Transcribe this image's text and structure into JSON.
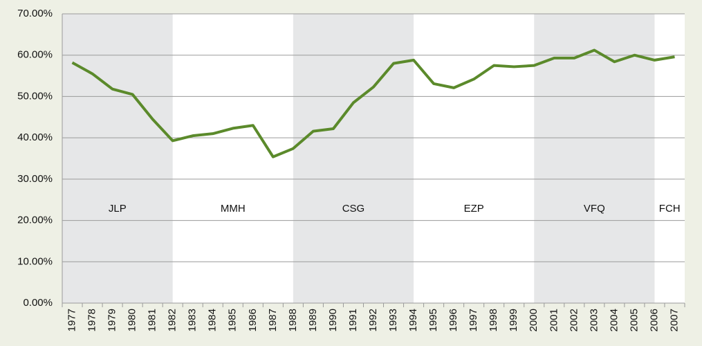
{
  "chart_data": {
    "type": "line",
    "categories": [
      "1977",
      "1978",
      "1979",
      "1980",
      "1981",
      "1982",
      "1983",
      "1984",
      "1985",
      "1986",
      "1987",
      "1988",
      "1989",
      "1990",
      "1991",
      "1992",
      "1993",
      "1994",
      "1995",
      "1996",
      "1997",
      "1998",
      "1999",
      "2000",
      "2001",
      "2002",
      "2003",
      "2004",
      "2005",
      "2006",
      "2007"
    ],
    "values": [
      58.2,
      55.5,
      51.8,
      50.5,
      44.5,
      39.3,
      40.5,
      41.0,
      42.3,
      43.0,
      35.4,
      37.4,
      41.6,
      42.2,
      48.5,
      52.3,
      58.0,
      58.8,
      53.1,
      52.1,
      54.2,
      57.5,
      57.2,
      57.5,
      59.3,
      59.3,
      61.2,
      58.4,
      60.0,
      58.8,
      59.6
    ],
    "color": "#5b8a2b",
    "ylim": [
      0,
      70
    ],
    "yticks": [
      {
        "value": 0,
        "label": "0.00%"
      },
      {
        "value": 10,
        "label": "10.00%"
      },
      {
        "value": 20,
        "label": "20.00%"
      },
      {
        "value": 30,
        "label": "30.00%"
      },
      {
        "value": 40,
        "label": "40.00%"
      },
      {
        "value": 50,
        "label": "50.00%"
      },
      {
        "value": 60,
        "label": "60.00%"
      },
      {
        "value": 70,
        "label": "70.00%"
      }
    ],
    "grid": true,
    "periods": [
      {
        "name": "JLP",
        "from": "1977",
        "to": "1982",
        "shaded": true
      },
      {
        "name": "MMH",
        "from": "1982",
        "to": "1988",
        "shaded": false
      },
      {
        "name": "CSG",
        "from": "1988",
        "to": "1994",
        "shaded": true
      },
      {
        "name": "EZP",
        "from": "1994",
        "to": "2000",
        "shaded": false
      },
      {
        "name": "VFQ",
        "from": "2000",
        "to": "2006",
        "shaded": true
      },
      {
        "name": "FCH",
        "from": "2006",
        "to": "2007",
        "shaded": false
      }
    ]
  }
}
